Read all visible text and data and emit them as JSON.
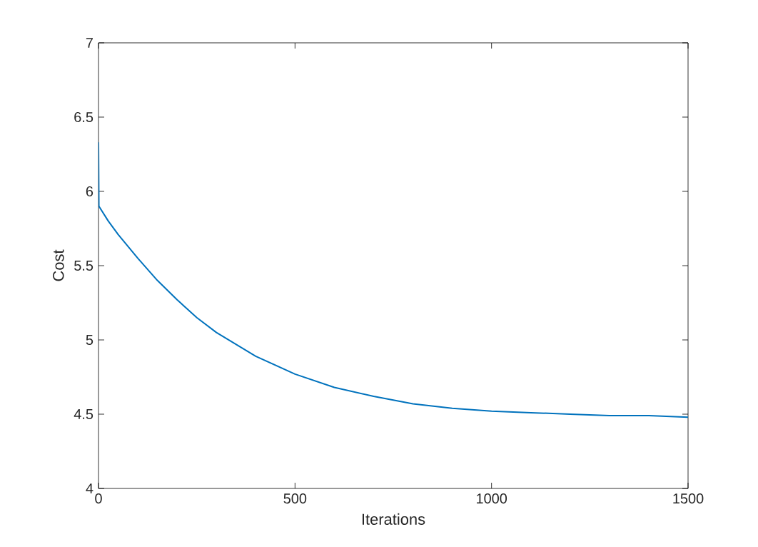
{
  "chart_data": {
    "type": "line",
    "xlabel": "Iterations",
    "ylabel": "Cost",
    "xlim": [
      0,
      1500
    ],
    "ylim": [
      4,
      7
    ],
    "xticks": [
      0,
      500,
      1000,
      1500
    ],
    "yticks": [
      4,
      4.5,
      5,
      5.5,
      6,
      6.5,
      7
    ],
    "x": [
      0,
      1,
      25,
      50,
      100,
      150,
      200,
      250,
      300,
      400,
      500,
      600,
      700,
      800,
      900,
      1000,
      1100,
      1200,
      1300,
      1400,
      1500
    ],
    "series": [
      {
        "color": "#0072bd",
        "values": [
          6.33,
          5.9,
          5.8,
          5.71,
          5.55,
          5.4,
          5.27,
          5.15,
          5.05,
          4.89,
          4.77,
          4.68,
          4.62,
          4.57,
          4.54,
          4.52,
          4.51,
          4.5,
          4.49,
          4.49,
          4.48
        ]
      }
    ]
  }
}
